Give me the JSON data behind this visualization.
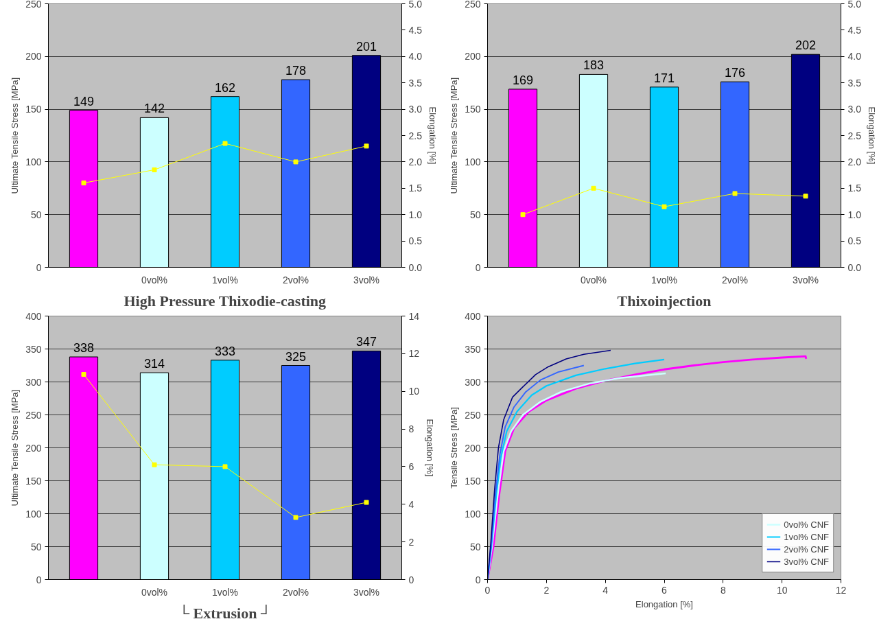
{
  "chart_data": [
    {
      "type": "bar",
      "title": "High Pressure Thixodie-casting",
      "ylabel": "Ultimate Tensile Stress [MPa]",
      "y2label": "Elongation [%]",
      "categories": [
        null,
        "0vol%",
        "1vol%",
        "2vol%",
        "3vol%"
      ],
      "ylim": [
        0,
        250
      ],
      "yticks": [
        0,
        50,
        100,
        150,
        200,
        250
      ],
      "y2lim": [
        0,
        5
      ],
      "y2ticks": [
        {
          "value": 0,
          "label": "0.0"
        },
        {
          "value": 0.5,
          "label": "0.5"
        },
        {
          "value": 1,
          "label": "1.0"
        },
        {
          "value": 1.5,
          "label": "1.5"
        },
        {
          "value": 2,
          "label": "2.0"
        },
        {
          "value": 2.5,
          "label": "2.5"
        },
        {
          "value": 3,
          "label": "3.0"
        },
        {
          "value": 3.5,
          "label": "3.5"
        },
        {
          "value": 4,
          "label": "4.0"
        },
        {
          "value": 4.5,
          "label": "4.5"
        },
        {
          "value": 5,
          "label": "5.0"
        }
      ],
      "grid": "y",
      "series": [
        {
          "type": "bar",
          "colors": [
            "#ff00ff",
            "#ccffff",
            "#00ccff",
            "#3366ff",
            "#000080"
          ],
          "values": [
            149,
            142,
            162,
            178,
            201
          ],
          "value_labels": [
            "149",
            "142",
            "162",
            "178",
            "201"
          ]
        },
        {
          "type": "line",
          "axis": "y2",
          "color": "#ffff00",
          "marker": "square",
          "values": [
            1.6,
            1.85,
            2.35,
            2.0,
            2.3
          ]
        }
      ]
    },
    {
      "type": "bar",
      "title": "Thixoinjection",
      "ylabel": "Ultimate Tensile Stress [MPa]",
      "y2label": "Elongation [%]",
      "categories": [
        null,
        "0vol%",
        "1vol%",
        "2vol%",
        "3vol%"
      ],
      "ylim": [
        0,
        250
      ],
      "yticks": [
        0,
        50,
        100,
        150,
        200,
        250
      ],
      "y2lim": [
        0,
        5
      ],
      "y2ticks": [
        {
          "value": 0,
          "label": "0.0"
        },
        {
          "value": 0.5,
          "label": "0.5"
        },
        {
          "value": 1,
          "label": "1.0"
        },
        {
          "value": 1.5,
          "label": "1.5"
        },
        {
          "value": 2,
          "label": "2.0"
        },
        {
          "value": 2.5,
          "label": "2.5"
        },
        {
          "value": 3,
          "label": "3.0"
        },
        {
          "value": 3.5,
          "label": "3.5"
        },
        {
          "value": 4,
          "label": "4.0"
        },
        {
          "value": 4.5,
          "label": "4.5"
        },
        {
          "value": 5,
          "label": "5.0"
        }
      ],
      "grid": "y",
      "series": [
        {
          "type": "bar",
          "colors": [
            "#ff00ff",
            "#ccffff",
            "#00ccff",
            "#3366ff",
            "#000080"
          ],
          "values": [
            169,
            183,
            171,
            176,
            202
          ],
          "value_labels": [
            "169",
            "183",
            "171",
            "176",
            "202"
          ]
        },
        {
          "type": "line",
          "axis": "y2",
          "color": "#ffff00",
          "marker": "square",
          "values": [
            1.0,
            1.5,
            1.15,
            1.4,
            1.35
          ]
        }
      ]
    },
    {
      "type": "bar",
      "title": "└ Extrusion ┘",
      "ylabel": "Ultimate Tensile Stress [MPa]",
      "y2label": "Elongation [%]",
      "categories": [
        null,
        "0vol%",
        "1vol%",
        "2vol%",
        "3vol%"
      ],
      "ylim": [
        0,
        400
      ],
      "yticks": [
        0,
        50,
        100,
        150,
        200,
        250,
        300,
        350,
        400
      ],
      "y2lim": [
        0,
        14
      ],
      "y2ticks": [
        0,
        2,
        4,
        6,
        8,
        10,
        12,
        14
      ],
      "grid": "y",
      "series": [
        {
          "type": "bar",
          "colors": [
            "#ff00ff",
            "#ccffff",
            "#00ccff",
            "#3366ff",
            "#000080"
          ],
          "values": [
            338,
            314,
            333,
            325,
            347
          ],
          "value_labels": [
            "338",
            "314",
            "333",
            "325",
            "347"
          ]
        },
        {
          "type": "line",
          "axis": "y2",
          "color": "#ffff00",
          "marker": "square",
          "values": [
            10.9,
            6.1,
            6.0,
            3.3,
            4.1
          ]
        }
      ]
    },
    {
      "type": "line",
      "xlabel": "Elongation [%]",
      "ylabel": "Tensile Stress [MPa]",
      "xlim": [
        0,
        12
      ],
      "xticks": [
        0,
        2,
        4,
        6,
        8,
        10,
        12
      ],
      "ylim": [
        0,
        400
      ],
      "yticks": [
        0,
        50,
        100,
        150,
        200,
        250,
        300,
        350,
        400
      ],
      "grid": "y",
      "legend": "bottom right",
      "marker": "none",
      "series": [
        {
          "color": "#ff00ff",
          "x": [
            0,
            0.2,
            0.4,
            0.6,
            0.9,
            1.4,
            2.0,
            3.0,
            4.0,
            5.0,
            6.0,
            7.0,
            8.0,
            9.0,
            10.0,
            10.8,
            10.82
          ],
          "values": [
            0,
            50,
            130,
            195,
            230,
            255,
            272,
            290,
            302,
            311,
            319,
            325,
            330,
            334,
            337,
            339,
            335
          ]
        },
        {
          "name": "0vol% CNF",
          "color": "#ccffff",
          "x": [
            0,
            0.15,
            0.35,
            0.55,
            0.8,
            1.2,
            1.8,
            2.5,
            3.5,
            4.5,
            6.05
          ],
          "values": [
            0,
            50,
            130,
            195,
            225,
            250,
            270,
            285,
            298,
            306,
            313
          ]
        },
        {
          "name": "1vol% CNF",
          "color": "#00ccff",
          "x": [
            0,
            0.13,
            0.3,
            0.45,
            0.65,
            1.0,
            1.5,
            2.0,
            3.0,
            4.0,
            5.0,
            6.0
          ],
          "values": [
            0,
            50,
            130,
            185,
            225,
            255,
            280,
            294,
            310,
            320,
            328,
            334
          ]
        },
        {
          "name": "2vol% CNF",
          "color": "#3366ff",
          "x": [
            0,
            0.12,
            0.27,
            0.42,
            0.6,
            0.9,
            1.3,
            1.8,
            2.4,
            3.27
          ],
          "values": [
            0,
            50,
            130,
            190,
            232,
            262,
            285,
            303,
            315,
            325
          ]
        },
        {
          "name": "3vol% CNF",
          "color": "#000080",
          "x": [
            0,
            0.11,
            0.24,
            0.37,
            0.55,
            0.85,
            1.19,
            1.63,
            2.06,
            2.67,
            3.27,
            4.18
          ],
          "values": [
            0,
            55,
            137,
            200,
            243,
            277,
            292,
            311,
            323,
            335,
            342,
            348
          ]
        }
      ]
    }
  ]
}
